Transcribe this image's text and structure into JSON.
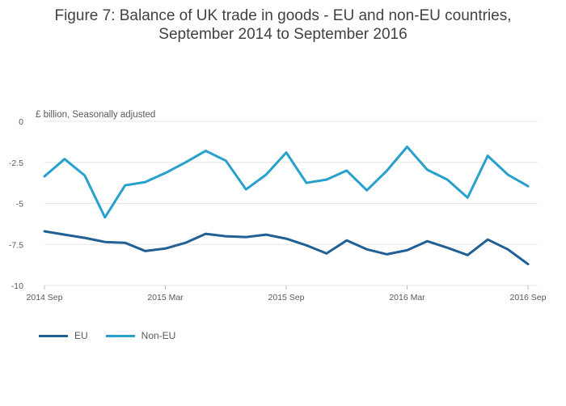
{
  "chart_data": {
    "type": "line",
    "title_line1": "Figure 7: Balance of UK trade in goods - EU and non-EU countries,",
    "title_line2": "September 2014 to September 2016",
    "unit_note": "£ billion, Seasonally adjusted",
    "x": [
      "2014 Sep",
      "2014 Oct",
      "2014 Nov",
      "2014 Dec",
      "2015 Jan",
      "2015 Feb",
      "2015 Mar",
      "2015 Apr",
      "2015 May",
      "2015 Jun",
      "2015 Jul",
      "2015 Aug",
      "2015 Sep",
      "2015 Oct",
      "2015 Nov",
      "2015 Dec",
      "2016 Jan",
      "2016 Feb",
      "2016 Mar",
      "2016 Apr",
      "2016 May",
      "2016 Jun",
      "2016 Jul",
      "2016 Aug",
      "2016 Sep"
    ],
    "x_tick_labels": [
      "2014 Sep",
      "2015 Mar",
      "2015 Sep",
      "2016 Mar",
      "2016 Sep"
    ],
    "y_ticks": [
      0,
      -2.5,
      -5,
      -7.5,
      -10
    ],
    "y_tick_labels": [
      "0",
      "-2.5",
      "-5",
      "-7.5",
      "-10"
    ],
    "ylim": [
      -10,
      0
    ],
    "grid": true,
    "legend_position": "bottom-left",
    "series": [
      {
        "name": "EU",
        "color": "#206095",
        "values": [
          -6.7,
          -6.9,
          -7.1,
          -7.35,
          -7.4,
          -7.9,
          -7.75,
          -7.4,
          -6.85,
          -7.0,
          -7.05,
          -6.9,
          -7.15,
          -7.55,
          -8.05,
          -7.25,
          -7.8,
          -8.1,
          -7.85,
          -7.3,
          -7.7,
          -8.15,
          -7.2,
          -7.8,
          -8.7
        ]
      },
      {
        "name": "Non-EU",
        "color": "#27a0cc",
        "values": [
          -3.35,
          -2.3,
          -3.3,
          -5.85,
          -3.9,
          -3.7,
          -3.15,
          -2.5,
          -1.8,
          -2.4,
          -4.15,
          -3.25,
          -1.9,
          -3.75,
          -3.55,
          -3.0,
          -4.2,
          -3.0,
          -1.55,
          -2.95,
          -3.55,
          -4.65,
          -2.1,
          -3.25,
          -3.95
        ]
      }
    ]
  }
}
